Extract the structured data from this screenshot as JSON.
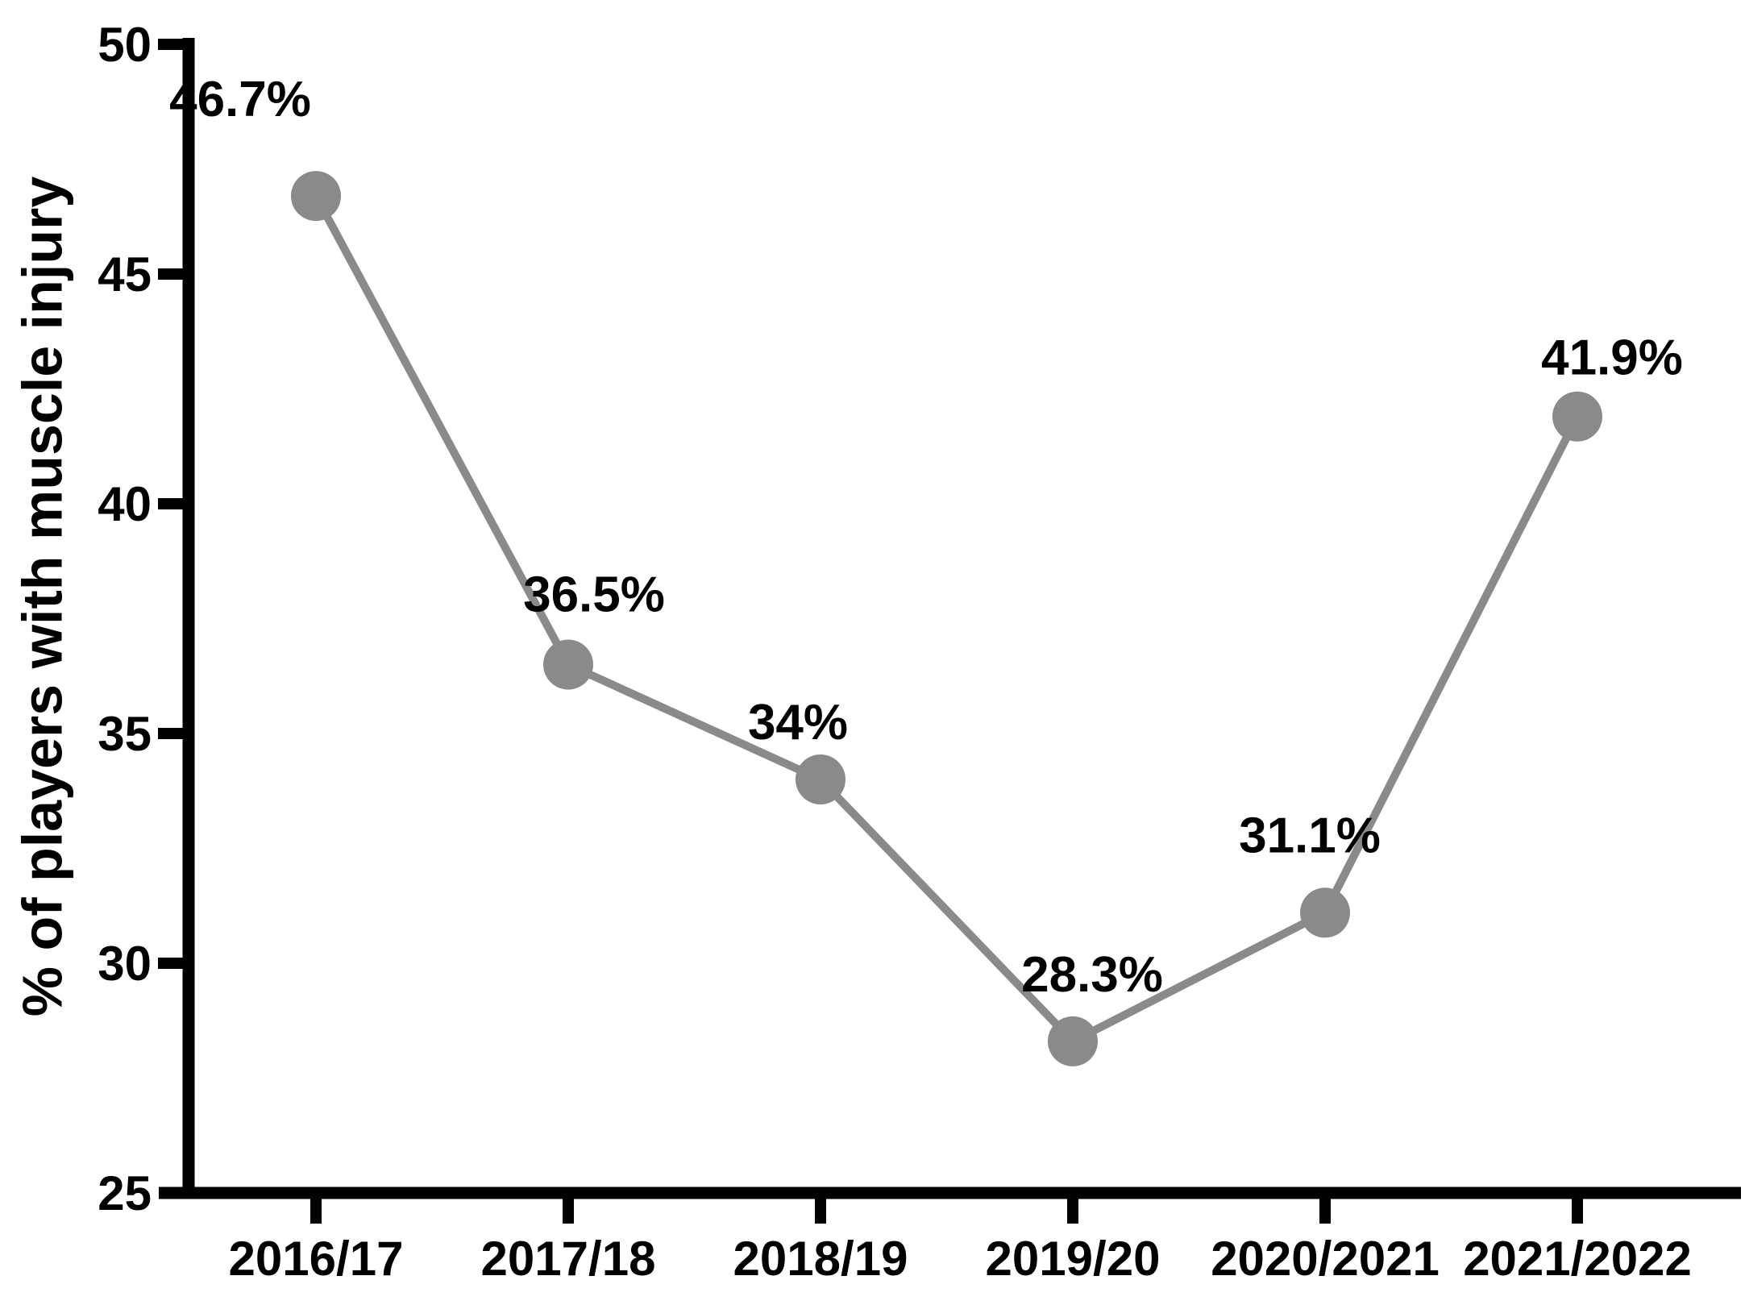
{
  "chart_data": {
    "type": "line",
    "title": "",
    "categories": [
      "2016/17",
      "2017/18",
      "2018/19",
      "2019/20",
      "2020/2021",
      "2021/2022"
    ],
    "values": [
      46.7,
      36.5,
      34,
      28.3,
      31.1,
      41.9
    ],
    "point_labels": [
      "46.7%",
      "36.5%",
      "34%",
      "28.3%",
      "31.1%",
      "41.9%"
    ],
    "series": [
      {
        "name": "% of players with muscle injury",
        "values": [
          46.7,
          36.5,
          34,
          28.3,
          31.1,
          41.9
        ]
      }
    ],
    "xlabel": "",
    "ylabel": "% of players with muscle injury",
    "y_ticks": [
      25,
      30,
      35,
      40,
      45,
      50
    ],
    "y_tick_labels": [
      "25",
      "30",
      "35",
      "40",
      "45",
      "50"
    ],
    "ylim": [
      25,
      50
    ],
    "grid": false,
    "legend": null,
    "colors": {
      "line": "#8a8a8a",
      "marker": "#8a8a8a",
      "axis": "#000000",
      "text": "#000000",
      "background": "#ffffff"
    }
  }
}
